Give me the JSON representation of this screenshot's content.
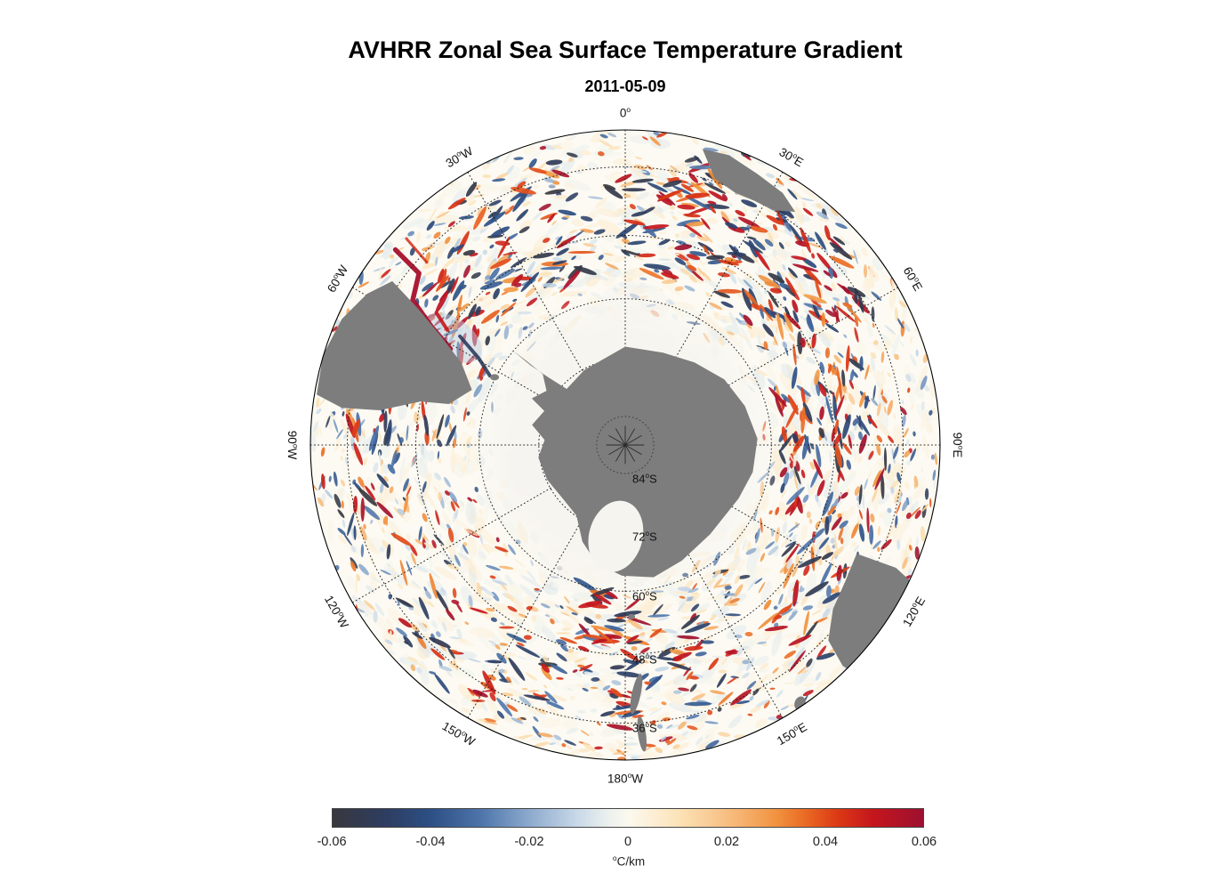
{
  "figure": {
    "title": "AVHRR Zonal Sea Surface Temperature Gradient",
    "date": "2011-05-09"
  },
  "chart_data": {
    "type": "heatmap",
    "title": "AVHRR Zonal Sea Surface Temperature Gradient",
    "subtitle": "2011-05-09",
    "projection": {
      "name": "south polar stereographic",
      "center": "South Pole",
      "outer_edge_latitude": "30S"
    },
    "field": {
      "name": "Zonal sea surface temperature gradient",
      "units": "°C/km",
      "min": -0.06,
      "max": 0.06
    },
    "meridian_labels": [
      "0°",
      "30°E",
      "60°E",
      "90°E",
      "120°E",
      "150°E",
      "180°W",
      "150°W",
      "120°W",
      "90°W",
      "60°W",
      "30°W"
    ],
    "parallel_labels": [
      {
        "text": "84°S",
        "radius_frac": 0.0908
      },
      {
        "text": "72°S",
        "radius_frac": 0.2745
      },
      {
        "text": "60°S",
        "radius_frac": 0.4641
      },
      {
        "text": "48°S",
        "radius_frac": 0.6652
      },
      {
        "text": "36°S",
        "radius_frac": 0.8827
      }
    ],
    "colorbar": {
      "ticks": [
        "-0.06",
        "-0.04",
        "-0.02",
        "0",
        "0.02",
        "0.04",
        "0.06"
      ],
      "tick_values": [
        -0.06,
        -0.04,
        -0.02,
        0,
        0.02,
        0.04,
        0.06
      ],
      "label": "°C/km"
    },
    "colormap_stops": [
      [
        0.0,
        "#38383f"
      ],
      [
        0.085,
        "#2e3c5e"
      ],
      [
        0.165,
        "#2c4f85"
      ],
      [
        0.25,
        "#4d74aa"
      ],
      [
        0.33,
        "#8aa8cc"
      ],
      [
        0.415,
        "#c9d9e8"
      ],
      [
        0.468,
        "#ecf1ee"
      ],
      [
        0.5,
        "#fbf9ee"
      ],
      [
        0.535,
        "#fdf0da"
      ],
      [
        0.585,
        "#fce3b8"
      ],
      [
        0.665,
        "#f8c084"
      ],
      [
        0.75,
        "#f19440"
      ],
      [
        0.8,
        "#ea6a24"
      ],
      [
        0.855,
        "#dc3915"
      ],
      [
        0.915,
        "#c5161d"
      ],
      [
        1.0,
        "#9d1030"
      ]
    ],
    "colors": {
      "land": "#7d7d7d",
      "ocean_base": "#fcfaf3",
      "ice": "#f5f4ef",
      "graticule": "#1e1e1e",
      "frame": "#000000",
      "background": "#ffffff"
    }
  }
}
